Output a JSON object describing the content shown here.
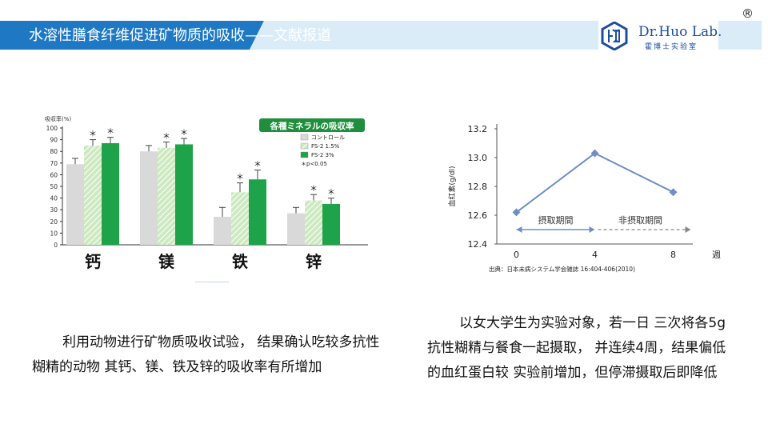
{
  "header": {
    "title": "水溶性膳食纤维促进矿物质的吸收——文献报道",
    "logo_text": "Dr.Huo Lab.",
    "logo_sub": "霍博士实验室",
    "registered": "®"
  },
  "chart_data": [
    {
      "type": "bar",
      "title": "各種ミネラルの吸収率",
      "ylabel": "吸収率(%)",
      "ylim": [
        0,
        100
      ],
      "yticks": [
        0,
        10,
        20,
        30,
        40,
        50,
        60,
        70,
        80,
        90,
        100
      ],
      "categories": [
        "钙",
        "镁",
        "铁",
        "锌"
      ],
      "series": [
        {
          "name": "コントロール",
          "values": [
            69,
            80,
            24,
            27
          ],
          "errors": [
            5,
            5,
            8,
            5
          ],
          "color": "#d9d9d9"
        },
        {
          "name": "FS-2 1.5%",
          "values": [
            85,
            83,
            45,
            38
          ],
          "errors": [
            5,
            5,
            8,
            5
          ],
          "color": "#bfe3b0",
          "hatched": true
        },
        {
          "name": "FS-2 3%",
          "values": [
            87,
            86,
            56,
            35
          ],
          "errors": [
            5,
            5,
            8,
            5
          ],
          "color": "#1fa34a"
        }
      ],
      "significance_marker": "＊",
      "significance": [
        [
          false,
          true,
          true
        ],
        [
          false,
          true,
          true
        ],
        [
          false,
          true,
          true
        ],
        [
          false,
          true,
          true
        ]
      ],
      "significance_note": "＊p<0.05",
      "legend_placement": "top-right"
    },
    {
      "type": "line",
      "ylabel": "血红素(g/dl)",
      "xlabel": "週",
      "x": [
        0,
        4,
        8
      ],
      "y": [
        12.62,
        13.03,
        12.76
      ],
      "xticks": [
        0,
        4,
        8
      ],
      "yticks": [
        12.4,
        12.6,
        12.8,
        13.0,
        13.2
      ],
      "ylim": [
        12.4,
        13.2
      ],
      "xlim": [
        -1,
        9
      ],
      "period_labels": [
        "摂取期間",
        "非摂取期間"
      ],
      "source": "出典：日本未病システム学会雑誌 16:404-406(2010)",
      "color": "#6f8fc4"
    }
  ],
  "texts": {
    "left": "利用动物进行矿物质吸收试验， 结果确认吃较多抗性糊精的动物 其钙、镁、铁及锌的吸收率有所增加",
    "right": "以女大学生为实验对象，若一日 三次将各5g抗性糊精与餐食一起摄取， 并连续4周，结果偏低的血红蛋白较 实验前增加，但停滞摄取后即降低"
  }
}
